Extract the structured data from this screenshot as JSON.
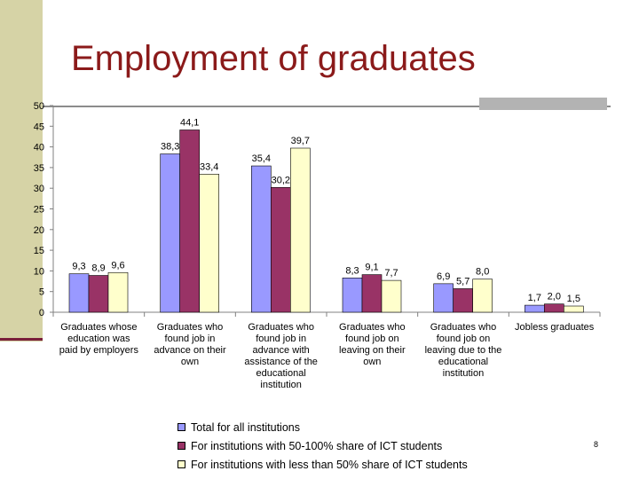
{
  "slide": {
    "title": "Employment of graduates",
    "page_number": "8"
  },
  "colors": {
    "series": [
      "#9999ff",
      "#993366",
      "#ffffcc"
    ],
    "axis": "#808080",
    "title": "#8b1a1a"
  },
  "chart_data": {
    "type": "bar",
    "categories": [
      [
        "Graduates whose",
        "education was",
        "paid by employers"
      ],
      [
        "Graduates who",
        "found job in",
        "advance on their",
        "own"
      ],
      [
        "Graduates who",
        "found job in",
        "advance with",
        "assistance of the",
        "educational",
        "institution"
      ],
      [
        "Graduates who",
        "found job on",
        "leaving on their",
        "own"
      ],
      [
        "Graduates who",
        "found job on",
        "leaving due to the",
        "educational",
        "institution"
      ],
      [
        "Jobless graduates"
      ]
    ],
    "series": [
      {
        "name": "Total for all institutions",
        "values": [
          9.3,
          38.3,
          35.4,
          8.3,
          6.9,
          1.7
        ],
        "labels": [
          "9,3",
          "38,3",
          "35,4",
          "8,3",
          "6,9",
          "1,7"
        ]
      },
      {
        "name": "For institutions with 50-100% share of ICT students",
        "values": [
          8.9,
          44.1,
          30.2,
          9.1,
          5.7,
          2.0
        ],
        "labels": [
          "8,9",
          "44,1",
          "30,2",
          "9,1",
          "5,7",
          "2,0"
        ]
      },
      {
        "name": "For institutions with less than 50% share of ICT students",
        "values": [
          9.6,
          33.4,
          39.7,
          7.7,
          8.0,
          1.5
        ],
        "labels": [
          "9,6",
          "33,4",
          "39,7",
          "7,7",
          "8,0",
          "1,5"
        ]
      }
    ],
    "ylim": [
      0,
      50
    ],
    "yticks": [
      0,
      5,
      10,
      15,
      20,
      25,
      30,
      35,
      40,
      45,
      50
    ],
    "grid": false,
    "legend_position": "bottom",
    "xlabel": "",
    "ylabel": ""
  }
}
